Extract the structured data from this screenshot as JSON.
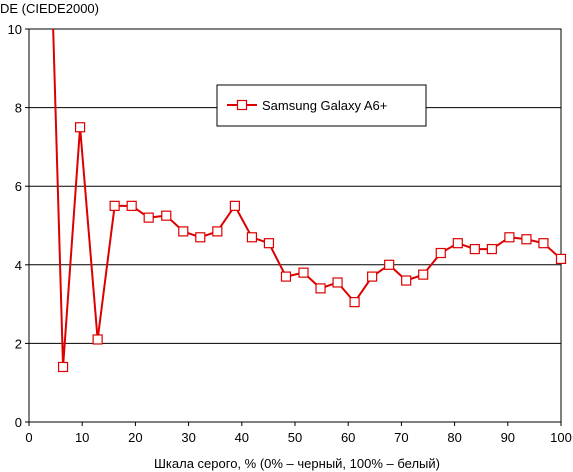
{
  "chart_data": {
    "type": "line",
    "title": "",
    "ylabel": "DE (CIEDE2000)",
    "xlabel": "Шкала серого, % (0% – черный, 100% – белый)",
    "xlim": [
      0,
      100
    ],
    "ylim": [
      0,
      10
    ],
    "xticks": [
      0,
      10,
      20,
      30,
      40,
      50,
      60,
      70,
      80,
      90,
      100
    ],
    "yticks": [
      0,
      2,
      4,
      6,
      8,
      10
    ],
    "grid": "horizontal",
    "legend_position": "top-center",
    "line_color": "#dd0000",
    "marker_fill": "#ffffff",
    "series": [
      {
        "name": "Samsung Galaxy A6+",
        "x": [
          4.5,
          6.4,
          9.6,
          12.9,
          16.1,
          19.3,
          22.5,
          25.8,
          29.0,
          32.2,
          35.4,
          38.7,
          41.9,
          45.1,
          48.3,
          51.6,
          54.8,
          58.0,
          61.2,
          64.5,
          67.7,
          70.9,
          74.1,
          77.4,
          80.6,
          83.8,
          87.0,
          90.3,
          93.5,
          96.7,
          100
        ],
        "y": [
          10.2,
          1.4,
          7.5,
          2.1,
          5.5,
          5.5,
          5.2,
          5.25,
          4.85,
          4.7,
          4.85,
          5.5,
          4.7,
          4.55,
          3.7,
          3.8,
          3.4,
          3.55,
          3.05,
          3.7,
          4.0,
          3.6,
          3.75,
          4.3,
          4.55,
          4.4,
          4.4,
          4.7,
          4.65,
          4.55,
          4.15
        ],
        "markers": [
          false,
          true,
          true,
          true,
          true,
          true,
          true,
          true,
          true,
          true,
          true,
          true,
          true,
          true,
          true,
          true,
          true,
          true,
          true,
          true,
          true,
          true,
          true,
          true,
          true,
          true,
          true,
          true,
          true,
          true,
          true
        ]
      }
    ]
  }
}
